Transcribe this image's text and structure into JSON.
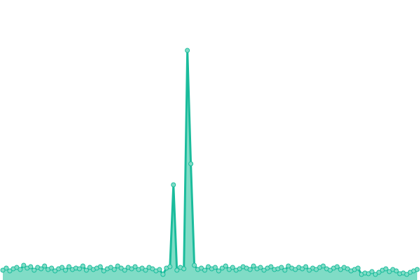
{
  "chart_data": {
    "type": "area",
    "color": "#1abc9c",
    "fill": "#80dcc6",
    "ylim": [
      0,
      400
    ],
    "values": [
      14,
      17,
      13,
      16,
      18,
      15,
      21,
      17,
      19,
      14,
      18,
      16,
      20,
      15,
      17,
      13,
      16,
      18,
      14,
      19,
      15,
      17,
      16,
      20,
      14,
      18,
      15,
      17,
      19,
      13,
      16,
      18,
      15,
      20,
      17,
      14,
      18,
      16,
      19,
      15,
      17,
      14,
      18,
      16,
      13,
      15,
      8,
      17,
      19,
      136,
      14,
      18,
      16,
      328,
      166,
      21,
      15,
      17,
      14,
      19,
      16,
      18,
      13,
      17,
      20,
      15,
      18,
      14,
      16,
      19,
      17,
      15,
      20,
      16,
      18,
      14,
      17,
      19,
      15,
      16,
      18,
      14,
      20,
      17,
      15,
      18,
      16,
      19,
      14,
      17,
      15,
      18,
      20,
      16,
      14,
      17,
      19,
      15,
      18,
      16,
      13,
      15,
      17,
      8,
      10,
      9,
      12,
      8,
      11,
      14,
      16,
      12,
      15,
      13,
      9,
      10,
      8,
      11,
      13,
      15
    ]
  }
}
